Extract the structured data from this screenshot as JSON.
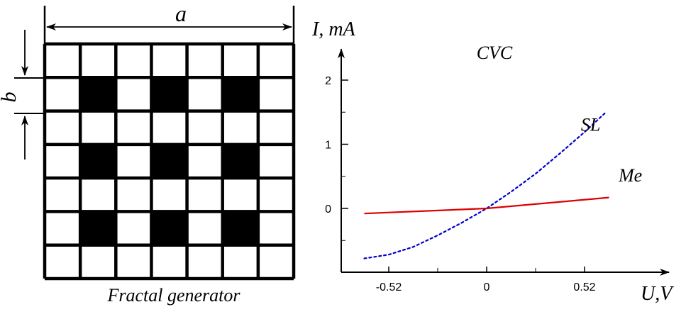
{
  "diagram": {
    "dimension_a": "a",
    "dimension_b": "b",
    "caption": "Fractal generator",
    "grid": {
      "rows": 7,
      "cols": 7,
      "black_rows": [
        1,
        3,
        5
      ],
      "black_cols": [
        1,
        3,
        5
      ]
    },
    "colors": {
      "cell_fill": "#000000",
      "line": "#000000",
      "background": "#ffffff"
    }
  },
  "chart_data": {
    "type": "line",
    "title": "CVC",
    "ylabel": "I, mA",
    "xlabel": "U,V",
    "x_ticks": [
      {
        "value": -0.52,
        "label": "-0.52"
      },
      {
        "value": 0,
        "label": "0"
      },
      {
        "value": 0.52,
        "label": "0.52"
      }
    ],
    "y_ticks": [
      {
        "value": 0,
        "label": "0"
      },
      {
        "value": 1,
        "label": "1"
      },
      {
        "value": 2,
        "label": "2"
      }
    ],
    "xlim": [
      -0.77,
      0.95
    ],
    "ylim": [
      -1,
      2.45
    ],
    "series": [
      {
        "name": "SL",
        "style": "dotted",
        "color": "#0000cc",
        "points": [
          [
            -0.65,
            -0.78
          ],
          [
            -0.52,
            -0.72
          ],
          [
            -0.39,
            -0.6
          ],
          [
            -0.26,
            -0.42
          ],
          [
            -0.13,
            -0.22
          ],
          [
            0,
            0
          ],
          [
            0.13,
            0.26
          ],
          [
            0.26,
            0.54
          ],
          [
            0.39,
            0.86
          ],
          [
            0.52,
            1.19
          ],
          [
            0.63,
            1.49
          ]
        ]
      },
      {
        "name": "Me",
        "style": "solid",
        "color": "#dd0000",
        "points": [
          [
            -0.65,
            -0.08
          ],
          [
            0,
            0
          ],
          [
            0.65,
            0.17
          ]
        ]
      }
    ],
    "series_label_anchor_x": {
      "SL": 0.35,
      "Me": 0.55
    }
  }
}
